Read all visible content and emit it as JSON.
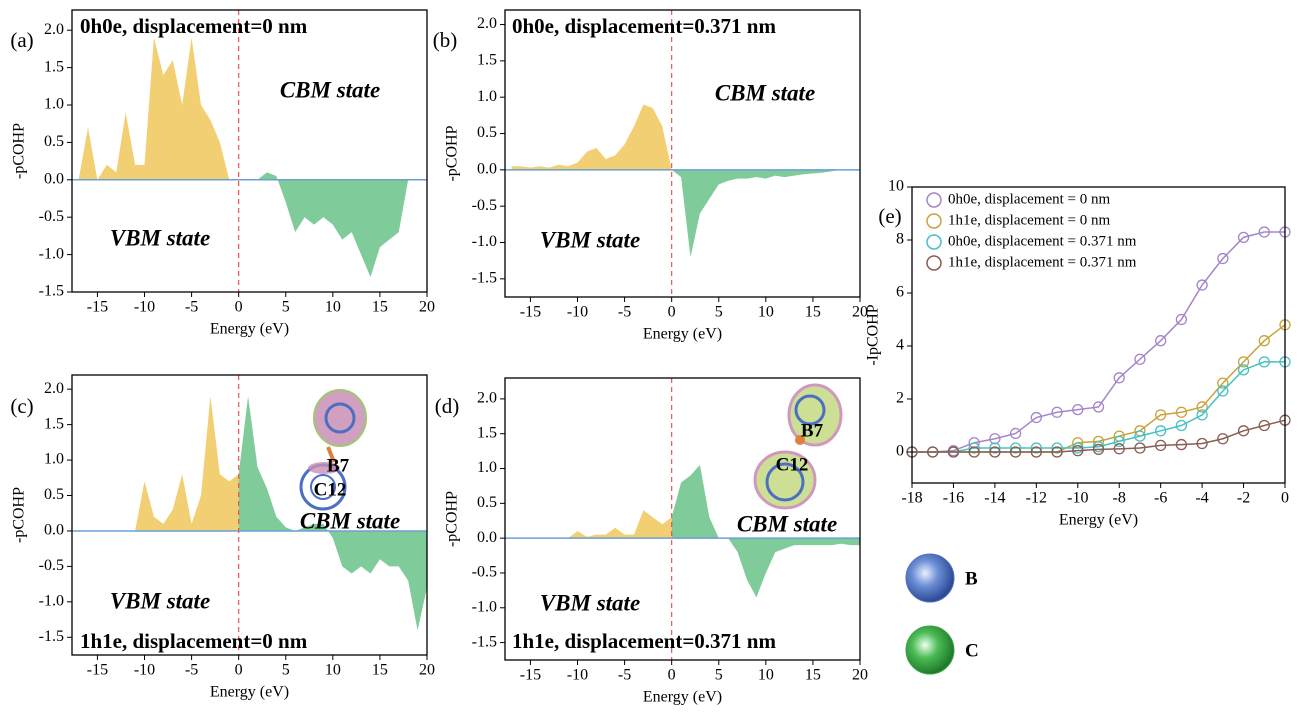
{
  "chart_data": [
    {
      "type": "area",
      "panel_label": "(a)",
      "title": "0h0e, displacement=0 nm",
      "annotations": [
        "CBM state",
        "VBM state"
      ],
      "xlabel": "Energy (eV)",
      "ylabel": "-pCOHP",
      "x": [
        -17,
        -16,
        -15,
        -14,
        -13,
        -12,
        -11,
        -10,
        -9,
        -8,
        -7,
        -6,
        -5,
        -4,
        -3,
        -2,
        -1,
        0,
        1,
        2,
        3,
        4,
        5,
        6,
        7,
        8,
        9,
        10,
        11,
        12,
        13,
        14,
        15,
        16,
        17,
        18,
        19,
        20
      ],
      "values": [
        0,
        0.7,
        0,
        0.2,
        0.1,
        0.9,
        0.2,
        0.2,
        1.9,
        1.4,
        1.6,
        1.0,
        1.9,
        1.0,
        0.8,
        0.5,
        0,
        0,
        0,
        0,
        0.1,
        0.05,
        -0.3,
        -0.7,
        -0.5,
        -0.6,
        -0.5,
        -0.6,
        -0.8,
        -0.7,
        -1.0,
        -1.3,
        -0.9,
        -0.8,
        -0.7,
        0,
        0,
        0
      ],
      "fill_below_fermi": "#f2cf72",
      "fill_above_fermi": "#7fcb9a",
      "fermi_energy": 0,
      "xlim": [
        -17.7,
        20
      ],
      "ylim": [
        -1.5,
        2.27
      ],
      "xticks": [
        -15,
        -10,
        -5,
        0,
        5,
        10,
        15,
        20
      ],
      "yticks": [
        -1.5,
        {
          "value": -1,
          "label": "-1.0"
        },
        -0.5,
        {
          "value": 0,
          "label": "0.0"
        },
        0.5,
        {
          "value": 1,
          "label": "1.0"
        },
        1.5,
        {
          "value": 2,
          "label": "2.0"
        }
      ]
    },
    {
      "type": "area",
      "panel_label": "(b)",
      "title": "0h0e, displacement=0.371 nm",
      "annotations": [
        "CBM state",
        "VBM state"
      ],
      "xlabel": "Energy (eV)",
      "ylabel": "-pCOHP",
      "x": [
        -17,
        -16,
        -15,
        -14,
        -13,
        -12,
        -11,
        -10,
        -9,
        -8,
        -7,
        -6,
        -5,
        -4,
        -3,
        -2,
        -1,
        0,
        1,
        2,
        3,
        4,
        5,
        6,
        7,
        8,
        9,
        10,
        11,
        12,
        13,
        14,
        15,
        16,
        17,
        18,
        19,
        20
      ],
      "values": [
        0.05,
        0.05,
        0.03,
        0.05,
        0.03,
        0.07,
        0.05,
        0.1,
        0.25,
        0.3,
        0.15,
        0.2,
        0.35,
        0.6,
        0.9,
        0.85,
        0.6,
        0,
        -0.1,
        -1.2,
        -0.6,
        -0.4,
        -0.2,
        -0.15,
        -0.12,
        -0.12,
        -0.1,
        -0.12,
        -0.08,
        -0.1,
        -0.08,
        -0.06,
        -0.05,
        -0.04,
        -0.02,
        0,
        0,
        0
      ],
      "fill_below_fermi": "#f2cf72",
      "fill_above_fermi": "#7fcb9a",
      "fermi_energy": 0,
      "xlim": [
        -17.7,
        20
      ],
      "ylim": [
        -1.75,
        2.2
      ],
      "xticks": [
        -15,
        -10,
        -5,
        0,
        5,
        10,
        15,
        20
      ],
      "yticks": [
        -1.5,
        {
          "value": -1,
          "label": "-1.0"
        },
        -0.5,
        {
          "value": 0,
          "label": "0.0"
        },
        0.5,
        {
          "value": 1,
          "label": "1.0"
        },
        1.5,
        {
          "value": 2,
          "label": "2.0"
        }
      ]
    },
    {
      "type": "area",
      "panel_label": "(c)",
      "title": "1h1e, displacement=0 nm",
      "annotations": [
        "CBM state",
        "VBM state",
        "B7",
        "C12"
      ],
      "xlabel": "Energy (eV)",
      "ylabel": "-pCOHP",
      "x": [
        -17,
        -16,
        -15,
        -14,
        -13,
        -12,
        -11,
        -10,
        -9,
        -8,
        -7,
        -6,
        -5,
        -4,
        -3,
        -2,
        -1,
        0,
        1,
        2,
        3,
        4,
        5,
        6,
        7,
        8,
        9,
        10,
        11,
        12,
        13,
        14,
        15,
        16,
        17,
        18,
        19,
        20
      ],
      "values": [
        0,
        0,
        0,
        0,
        0,
        0,
        0,
        0.7,
        0.2,
        0.1,
        0.3,
        0.8,
        0.1,
        0.5,
        1.9,
        0.8,
        0.7,
        0.8,
        1.9,
        0.9,
        0.6,
        0.2,
        0.05,
        0,
        0.05,
        0.1,
        0.1,
        -0.1,
        -0.5,
        -0.6,
        -0.5,
        -0.6,
        -0.4,
        -0.5,
        -0.5,
        -0.7,
        -1.4,
        -0.8
      ],
      "fill_below_fermi": "#f2cf72",
      "fill_above_fermi": "#7fcb9a",
      "fermi_energy": 0,
      "xlim": [
        -17.7,
        20
      ],
      "ylim": [
        -1.75,
        2.2
      ],
      "xticks": [
        -15,
        -10,
        -5,
        0,
        5,
        10,
        15,
        20
      ],
      "yticks": [
        -1.5,
        {
          "value": -1,
          "label": "-1.0"
        },
        -0.5,
        {
          "value": 0,
          "label": "0.0"
        },
        0.5,
        {
          "value": 1,
          "label": "1.0"
        },
        1.5,
        {
          "value": 2,
          "label": "2.0"
        }
      ]
    },
    {
      "type": "area",
      "panel_label": "(d)",
      "title": "1h1e, displacement=0.371 nm",
      "annotations": [
        "CBM state",
        "VBM state",
        "B7",
        "C12"
      ],
      "xlabel": "Energy (eV)",
      "ylabel": "-pCOHP",
      "x": [
        -17,
        -16,
        -15,
        -14,
        -13,
        -12,
        -11,
        -10,
        -9,
        -8,
        -7,
        -6,
        -5,
        -4,
        -3,
        -2,
        -1,
        0,
        1,
        2,
        3,
        4,
        5,
        6,
        7,
        8,
        9,
        10,
        11,
        12,
        13,
        14,
        15,
        16,
        17,
        18,
        19,
        20
      ],
      "values": [
        0,
        0,
        0,
        0,
        0,
        0,
        0,
        0.1,
        0.02,
        0.05,
        0.05,
        0.15,
        0.05,
        0.05,
        0.4,
        0.3,
        0.2,
        0.3,
        0.8,
        0.9,
        1.05,
        0.3,
        0,
        0,
        -0.2,
        -0.6,
        -0.85,
        -0.5,
        -0.2,
        -0.15,
        -0.1,
        -0.1,
        -0.1,
        -0.1,
        -0.1,
        -0.08,
        -0.1,
        -0.1
      ],
      "fill_below_fermi": "#f2cf72",
      "fill_above_fermi": "#7fcb9a",
      "fermi_energy": 0,
      "xlim": [
        -17.7,
        20
      ],
      "ylim": [
        -1.75,
        2.3
      ],
      "xticks": [
        -15,
        -10,
        -5,
        0,
        5,
        10,
        15,
        20
      ],
      "yticks": [
        -1.5,
        {
          "value": -1,
          "label": "-1.0"
        },
        -0.5,
        {
          "value": 0,
          "label": "0.0"
        },
        0.5,
        {
          "value": 1,
          "label": "1.0"
        },
        1.5,
        {
          "value": 2,
          "label": "2.0"
        }
      ]
    },
    {
      "type": "scatter",
      "panel_label": "(e)",
      "xlabel": "Energy (eV)",
      "ylabel": "-IpCOHP",
      "legend": "upper left",
      "x": [
        -18,
        -17,
        -16,
        -15,
        -14,
        -13,
        -12,
        -11,
        -10,
        -9,
        -8,
        -7,
        -6,
        -5,
        -4,
        -3,
        -2,
        -1,
        0
      ],
      "series": [
        {
          "name": "0h0e, displacement = 0 nm",
          "color": "#a585c8",
          "values": [
            0,
            0,
            0.05,
            0.35,
            0.5,
            0.7,
            1.3,
            1.5,
            1.6,
            1.7,
            2.8,
            3.5,
            4.2,
            5.0,
            6.3,
            7.3,
            8.1,
            8.3,
            8.3
          ]
        },
        {
          "name": "1h1e, displacement = 0 nm",
          "color": "#c9a23a",
          "values": [
            0,
            0,
            0,
            0,
            0,
            0,
            0,
            0,
            0.35,
            0.4,
            0.6,
            0.8,
            1.4,
            1.5,
            1.7,
            2.6,
            3.4,
            4.2,
            4.8
          ]
        },
        {
          "name": "0h0e, displacement = 0.371 nm",
          "color": "#46c1c4",
          "values": [
            0,
            0,
            0,
            0.15,
            0.15,
            0.15,
            0.15,
            0.15,
            0.15,
            0.2,
            0.4,
            0.6,
            0.8,
            1.0,
            1.4,
            2.3,
            3.1,
            3.4,
            3.4
          ]
        },
        {
          "name": "1h1e, displacement = 0.371 nm",
          "color": "#8a5c52",
          "values": [
            0,
            0,
            0,
            0,
            0,
            0,
            0,
            0,
            0.05,
            0.1,
            0.12,
            0.15,
            0.25,
            0.28,
            0.32,
            0.5,
            0.8,
            1.0,
            1.2
          ]
        }
      ],
      "xlim": [
        -18,
        0
      ],
      "ylim": [
        -1.17,
        10
      ],
      "xticks": [
        -18,
        -16,
        -14,
        -12,
        -10,
        -8,
        -6,
        -4,
        -2,
        0
      ],
      "yticks": [
        0,
        2,
        4,
        6,
        8,
        10
      ]
    }
  ],
  "atom_legend": [
    {
      "label": "B",
      "color": "#4f72c4"
    },
    {
      "label": "C",
      "color": "#3aa346"
    }
  ]
}
